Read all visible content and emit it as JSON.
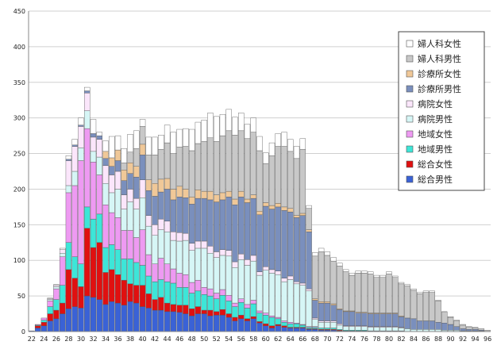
{
  "chart_data": {
    "type": "bar",
    "stacked": true,
    "grid": true,
    "legend_position": "top-right",
    "ylim": [
      0,
      450
    ],
    "y_ticks": [
      0,
      50,
      100,
      150,
      200,
      250,
      300,
      350,
      400,
      450
    ],
    "x_tick_labels": [
      "22",
      "24",
      "26",
      "28",
      "30",
      "32",
      "34",
      "36",
      "38",
      "40",
      "42",
      "44",
      "46",
      "48",
      "50",
      "52",
      "54",
      "56",
      "58",
      "60",
      "62",
      "64",
      "66",
      "68",
      "70",
      "72",
      "74",
      "76",
      "78",
      "80",
      "82",
      "84",
      "86",
      "88",
      "90",
      "92",
      "94",
      "96"
    ],
    "categories": [
      22,
      23,
      24,
      25,
      26,
      27,
      28,
      29,
      30,
      31,
      32,
      33,
      34,
      35,
      36,
      37,
      38,
      39,
      40,
      41,
      42,
      43,
      44,
      45,
      46,
      47,
      48,
      49,
      50,
      51,
      52,
      53,
      54,
      55,
      56,
      57,
      58,
      59,
      60,
      61,
      62,
      63,
      64,
      65,
      66,
      67,
      68,
      69,
      70,
      71,
      72,
      73,
      74,
      75,
      76,
      77,
      78,
      79,
      80,
      81,
      82,
      83,
      84,
      85,
      86,
      87,
      88,
      89,
      90,
      91,
      92,
      93,
      94,
      95,
      96
    ],
    "series": [
      {
        "name": "総合男性",
        "color": "#3a62d6",
        "values": [
          1,
          5,
          8,
          15,
          18,
          25,
          32,
          35,
          33,
          50,
          48,
          45,
          38,
          42,
          40,
          37,
          42,
          40,
          35,
          33,
          30,
          30,
          28,
          28,
          27,
          25,
          22,
          25,
          25,
          22,
          23,
          23,
          20,
          15,
          18,
          15,
          18,
          12,
          8,
          5,
          8,
          6,
          5,
          5,
          5,
          3,
          3,
          2,
          2,
          2,
          1,
          1,
          1,
          1,
          1,
          1,
          1,
          1,
          1,
          1,
          1,
          0,
          0,
          0,
          0,
          0,
          0,
          0,
          0,
          0,
          0,
          0,
          0,
          0,
          0
        ]
      },
      {
        "name": "総合女性",
        "color": "#e01010",
        "values": [
          0,
          3,
          5,
          10,
          12,
          15,
          55,
          40,
          30,
          95,
          70,
          80,
          45,
          45,
          40,
          35,
          25,
          25,
          30,
          20,
          15,
          18,
          12,
          10,
          10,
          12,
          10,
          10,
          5,
          8,
          5,
          8,
          5,
          5,
          5,
          3,
          3,
          2,
          3,
          3,
          2,
          2,
          1,
          1,
          1,
          1,
          1,
          1,
          1,
          1,
          1,
          0,
          0,
          0,
          0,
          0,
          0,
          0,
          0,
          0,
          0,
          0,
          0,
          0,
          0,
          0,
          0,
          0,
          0,
          0,
          0,
          0,
          0,
          0,
          0
        ]
      },
      {
        "name": "地域男性",
        "color": "#3de6d8",
        "values": [
          0,
          1,
          3,
          10,
          15,
          25,
          38,
          30,
          32,
          30,
          40,
          40,
          35,
          35,
          35,
          30,
          35,
          32,
          28,
          25,
          25,
          25,
          30,
          30,
          25,
          25,
          22,
          22,
          22,
          20,
          18,
          20,
          18,
          15,
          18,
          15,
          18,
          12,
          12,
          12,
          8,
          5,
          5,
          5,
          3,
          2,
          2,
          2,
          2,
          2,
          1,
          1,
          1,
          1,
          1,
          0,
          0,
          0,
          0,
          0,
          0,
          0,
          0,
          0,
          0,
          0,
          0,
          0,
          0,
          0,
          0,
          0,
          0,
          0,
          0
        ]
      },
      {
        "name": "地域女性",
        "color": "#ee9af2",
        "values": [
          0,
          1,
          3,
          8,
          15,
          40,
          70,
          100,
          145,
          110,
          80,
          55,
          60,
          45,
          45,
          40,
          40,
          35,
          50,
          30,
          25,
          30,
          25,
          20,
          20,
          18,
          15,
          15,
          10,
          10,
          8,
          8,
          8,
          5,
          5,
          5,
          5,
          3,
          3,
          2,
          2,
          2,
          2,
          1,
          1,
          1,
          1,
          0,
          0,
          0,
          0,
          0,
          0,
          0,
          0,
          0,
          0,
          0,
          0,
          0,
          0,
          0,
          0,
          0,
          0,
          0,
          0,
          0,
          0,
          0,
          0,
          0,
          0,
          0,
          0
        ]
      },
      {
        "name": "病院男性",
        "color": "#d6f6f6",
        "values": [
          0,
          0,
          0,
          2,
          3,
          5,
          10,
          20,
          18,
          25,
          15,
          25,
          30,
          28,
          40,
          30,
          40,
          40,
          45,
          40,
          40,
          40,
          45,
          40,
          45,
          48,
          45,
          45,
          55,
          50,
          50,
          48,
          55,
          50,
          55,
          55,
          55,
          50,
          60,
          60,
          60,
          55,
          60,
          55,
          55,
          50,
          10,
          8,
          8,
          8,
          6,
          5,
          5,
          5,
          5,
          5,
          5,
          5,
          5,
          5,
          4,
          4,
          3,
          3,
          3,
          3,
          3,
          2,
          2,
          2,
          1,
          1,
          1,
          1,
          0
        ]
      },
      {
        "name": "病院女性",
        "color": "#fbe6fb",
        "values": [
          0,
          0,
          0,
          1,
          2,
          5,
          35,
          35,
          30,
          25,
          20,
          25,
          25,
          25,
          25,
          20,
          18,
          15,
          25,
          15,
          15,
          15,
          15,
          12,
          12,
          10,
          10,
          10,
          10,
          10,
          8,
          8,
          8,
          8,
          8,
          8,
          8,
          5,
          5,
          5,
          5,
          5,
          5,
          3,
          3,
          3,
          2,
          2,
          2,
          2,
          2,
          1,
          1,
          1,
          1,
          1,
          1,
          1,
          1,
          1,
          1,
          0,
          0,
          0,
          0,
          0,
          0,
          0,
          0,
          0,
          0,
          0,
          0,
          0,
          0
        ]
      },
      {
        "name": "診療所男性",
        "color": "#7a8fbd",
        "values": [
          0,
          0,
          0,
          0,
          0,
          0,
          2,
          2,
          2,
          3,
          5,
          5,
          10,
          12,
          15,
          20,
          22,
          30,
          35,
          35,
          40,
          38,
          45,
          45,
          50,
          50,
          55,
          60,
          60,
          65,
          70,
          70,
          75,
          80,
          80,
          80,
          80,
          80,
          85,
          85,
          90,
          95,
          90,
          90,
          95,
          80,
          25,
          25,
          25,
          22,
          20,
          20,
          20,
          18,
          18,
          18,
          18,
          18,
          18,
          18,
          15,
          15,
          15,
          12,
          12,
          12,
          10,
          10,
          8,
          5,
          3,
          2,
          2,
          1,
          0
        ]
      },
      {
        "name": "診療所女性",
        "color": "#f0c898",
        "values": [
          0,
          0,
          0,
          0,
          0,
          0,
          0,
          0,
          0,
          0,
          0,
          0,
          10,
          12,
          15,
          15,
          15,
          15,
          15,
          15,
          18,
          18,
          15,
          15,
          15,
          12,
          10,
          12,
          10,
          12,
          10,
          10,
          8,
          8,
          8,
          5,
          5,
          5,
          5,
          5,
          5,
          5,
          5,
          3,
          3,
          3,
          2,
          2,
          2,
          2,
          1,
          1,
          1,
          1,
          1,
          1,
          1,
          1,
          1,
          1,
          1,
          0,
          0,
          0,
          0,
          0,
          0,
          0,
          0,
          0,
          0,
          0,
          0,
          0,
          0
        ]
      },
      {
        "name": "婦人科男性",
        "color": "#c8c8c8",
        "values": [
          0,
          0,
          0,
          0,
          0,
          0,
          0,
          0,
          0,
          0,
          0,
          0,
          0,
          0,
          0,
          10,
          15,
          25,
          25,
          35,
          40,
          42,
          50,
          50,
          55,
          60,
          65,
          65,
          70,
          75,
          75,
          80,
          85,
          90,
          85,
          85,
          88,
          85,
          55,
          70,
          80,
          85,
          80,
          80,
          90,
          30,
          60,
          70,
          65,
          60,
          60,
          55,
          50,
          55,
          55,
          55,
          50,
          50,
          55,
          50,
          45,
          45,
          40,
          38,
          40,
          40,
          30,
          15,
          10,
          8,
          5,
          3,
          2,
          2,
          2
        ]
      },
      {
        "name": "婦人科女性",
        "color": "#ffffff",
        "values": [
          0,
          0,
          0,
          1,
          1,
          2,
          5,
          8,
          10,
          5,
          20,
          5,
          15,
          30,
          20,
          20,
          25,
          25,
          10,
          25,
          25,
          20,
          25,
          30,
          25,
          25,
          30,
          30,
          30,
          35,
          35,
          30,
          30,
          25,
          25,
          20,
          20,
          20,
          15,
          18,
          18,
          20,
          17,
          17,
          15,
          4,
          5,
          5,
          5,
          5,
          4,
          3,
          3,
          3,
          3,
          3,
          3,
          3,
          3,
          2,
          2,
          2,
          2,
          2,
          2,
          2,
          1,
          1,
          1,
          1,
          1,
          1,
          1,
          0,
          0
        ]
      }
    ]
  }
}
